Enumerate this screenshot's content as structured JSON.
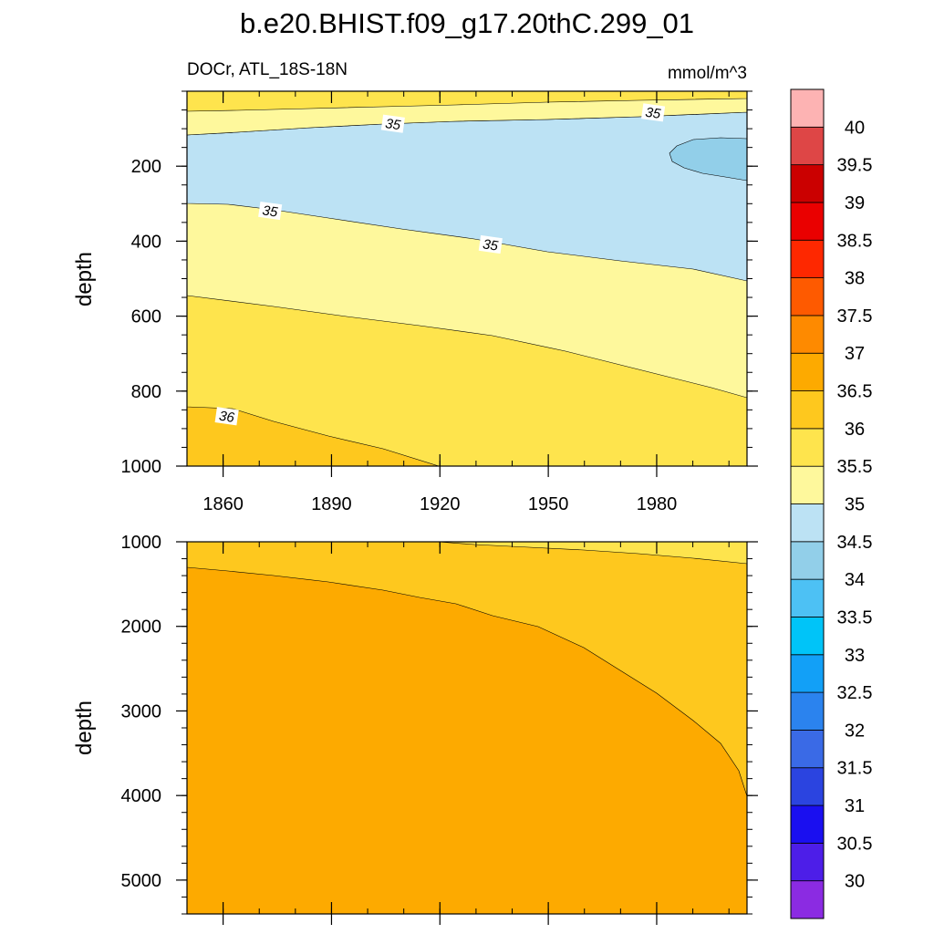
{
  "chart_data": {
    "type": "contour",
    "title": "b.e20.BHIST.f09_g17.20thC.299_01",
    "left_subtitle": "DOCr, ATL_18S-18N",
    "right_subtitle": "mmol/m^3",
    "xlabel": "",
    "ylabel": "depth",
    "xlim": [
      1850,
      2005
    ],
    "x_ticks": [
      1860,
      1890,
      1920,
      1950,
      1980
    ],
    "upper_panel": {
      "ylim": [
        0,
        1000
      ],
      "y_ticks": [
        200,
        400,
        600,
        800,
        1000
      ],
      "contour_labels": [
        {
          "text": "35",
          "x": 1907,
          "y": 88
        },
        {
          "text": "35",
          "x": 1979,
          "y": 58
        },
        {
          "text": "35",
          "x": 1873,
          "y": 320
        },
        {
          "text": "35",
          "x": 1934,
          "y": 410
        },
        {
          "text": "36",
          "x": 1861,
          "y": 868
        }
      ]
    },
    "lower_panel": {
      "ylim": [
        1000,
        5400
      ],
      "y_ticks": [
        1000,
        2000,
        3000,
        4000,
        5000
      ]
    },
    "colorbar": {
      "levels": [
        "30",
        "30.5",
        "31",
        "31.5",
        "32",
        "32.5",
        "33",
        "33.5",
        "34",
        "34.5",
        "35",
        "35.5",
        "36",
        "36.5",
        "37",
        "37.5",
        "38",
        "38.5",
        "39",
        "39.5",
        "40"
      ],
      "colors": [
        "#8b2be2",
        "#4d1ee8",
        "#1a0ff0",
        "#2b44e0",
        "#3a6ae6",
        "#2b83ee",
        "#12a0f7",
        "#00c4f8",
        "#4dc1f4",
        "#92cfe9",
        "#bce2f4",
        "#fef89c",
        "#fee44d",
        "#fec81e",
        "#fdaa00",
        "#fe8a00",
        "#fe5a00",
        "#fe2800",
        "#ea0000",
        "#cb0000",
        "#de4646",
        "#fdb3b3"
      ]
    }
  }
}
